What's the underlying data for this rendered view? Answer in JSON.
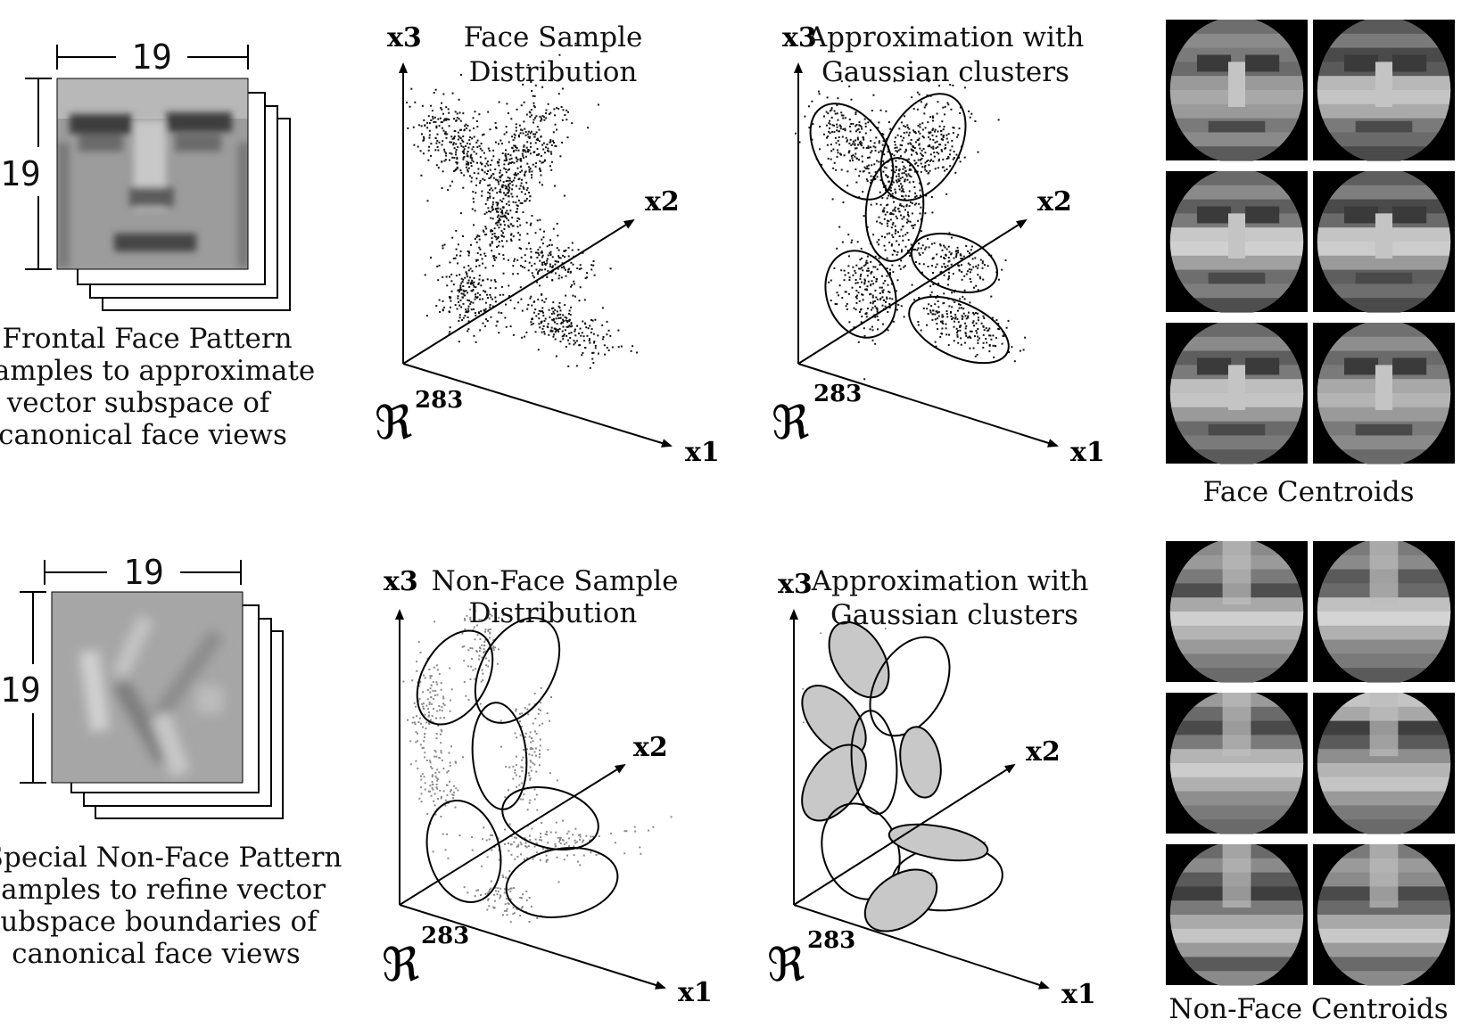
{
  "rows": [
    {
      "id": "face",
      "dimension_width": "19",
      "dimension_height": "19",
      "caption_lines": [
        "Frontal  Face Pattern",
        "samples to approximate",
        "vector subspace of",
        "canonical face views"
      ],
      "sample_plot": {
        "title_lines": [
          "Face Sample",
          "Distribution"
        ],
        "axes": {
          "x3": "x3",
          "x2": "x2",
          "x1": "x1",
          "space": "ℜ",
          "space_dim": "283"
        }
      },
      "cluster_plot": {
        "title_lines": [
          "Approximation with",
          "Gaussian clusters"
        ],
        "axes": {
          "x3": "x3",
          "x2": "x2",
          "x1": "x1",
          "space": "ℜ",
          "space_dim": "283"
        }
      },
      "centroids_label": "Face Centroids"
    },
    {
      "id": "nonface",
      "dimension_width": "19",
      "dimension_height": "19",
      "caption_lines": [
        "Special Non-Face Pattern",
        "samples to refine vector",
        "subspace boundaries of",
        "canonical face views"
      ],
      "sample_plot": {
        "title_lines": [
          "Non-Face Sample",
          "Distribution"
        ],
        "axes": {
          "x3": "x3",
          "x2": "x2",
          "x1": "x1",
          "space": "ℜ",
          "space_dim": "283"
        }
      },
      "cluster_plot": {
        "title_lines": [
          "Approximation with",
          "Gaussian clusters"
        ],
        "axes": {
          "x3": "x3",
          "x2": "x2",
          "x1": "x1",
          "space": "ℜ",
          "space_dim": "283"
        }
      },
      "centroids_label": "Non-Face Centroids"
    }
  ],
  "colors": {
    "face_dots": "#111111",
    "nonface_dots": "#8a8a8a",
    "cluster_fill": "#c8c8c8",
    "centroid_background": "#000000"
  }
}
